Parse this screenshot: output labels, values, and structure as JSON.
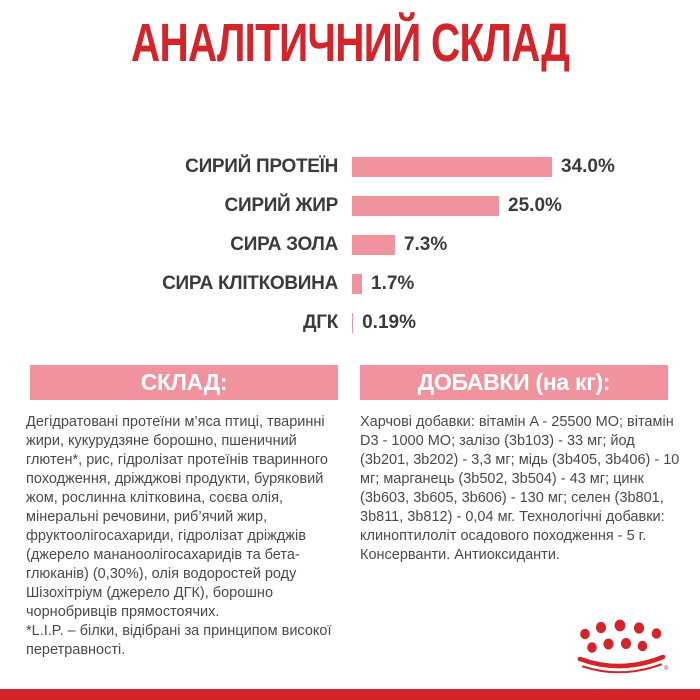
{
  "title": "АНАЛІТИЧНИЙ СКЛАД",
  "chart_data": {
    "type": "bar",
    "orientation": "horizontal",
    "title": "АНАЛІТИЧНИЙ СКЛАД",
    "categories": [
      "СИРИЙ ПРОТЕЇН",
      "СИРИЙ ЖИР",
      "СИРА ЗОЛА",
      "СИРА КЛІТКОВИНА",
      "ДГК"
    ],
    "values": [
      34.0,
      25.0,
      7.3,
      1.7,
      0.19
    ],
    "value_labels": [
      "34.0%",
      "25.0%",
      "7.3%",
      "1.7%",
      "0.19%"
    ],
    "xlabel": "",
    "ylabel": "",
    "xlim": [
      0,
      34
    ],
    "grid": false,
    "legend": false,
    "bar_color": "#f0939f"
  },
  "sections": {
    "composition": {
      "header": "СКЛАД:",
      "text": "Дегідратовані протеїни м’яса птиці, тваринні жири, кукурудзяне борошно, пшеничний глютен*, рис, гідролізат протеїнів тваринного походження, дріжджові продукти, буряковий жом, рослинна клітковина, соєва олія, мінеральні речовини, риб’ячий жир, фруктоолігосахариди, гідролізат дріжджів (джерело мананоолігосахаридів та бета-глюканів) (0,30%), олія водоростей роду Шізохітріум (джерело ДГК), борошно чорнобривців прямостоячих.",
      "footnote": "*L.I.P. – білки, відібрані за принципом високої перетравності."
    },
    "additives": {
      "header": "ДОБАВКИ (на кг):",
      "text": "Харчові добавки: вітамін A - 25500 МО; вітамін D3 - 1000 МО; залізо (3b103) - 33 мг; йод (3b201, 3b202) - 3,3 мг; мідь (3b405, 3b406) - 10 мг; марганець (3b502, 3b504) - 43 мг; цинк (3b603, 3b605, 3b606) - 130 мг; селен (3b801, 3b811, 3b812) - 0,04 мг. Технологічні добавки: клиноптилоліт осадового походження - 5 г. Консерванти. Антиоксиданти."
    }
  },
  "branding": {
    "logo": "royal-canin-crown",
    "registered_mark": "®"
  },
  "colors": {
    "brand_red": "#d42329",
    "pink": "#f0939f",
    "text_gray": "#4a4a4a"
  }
}
